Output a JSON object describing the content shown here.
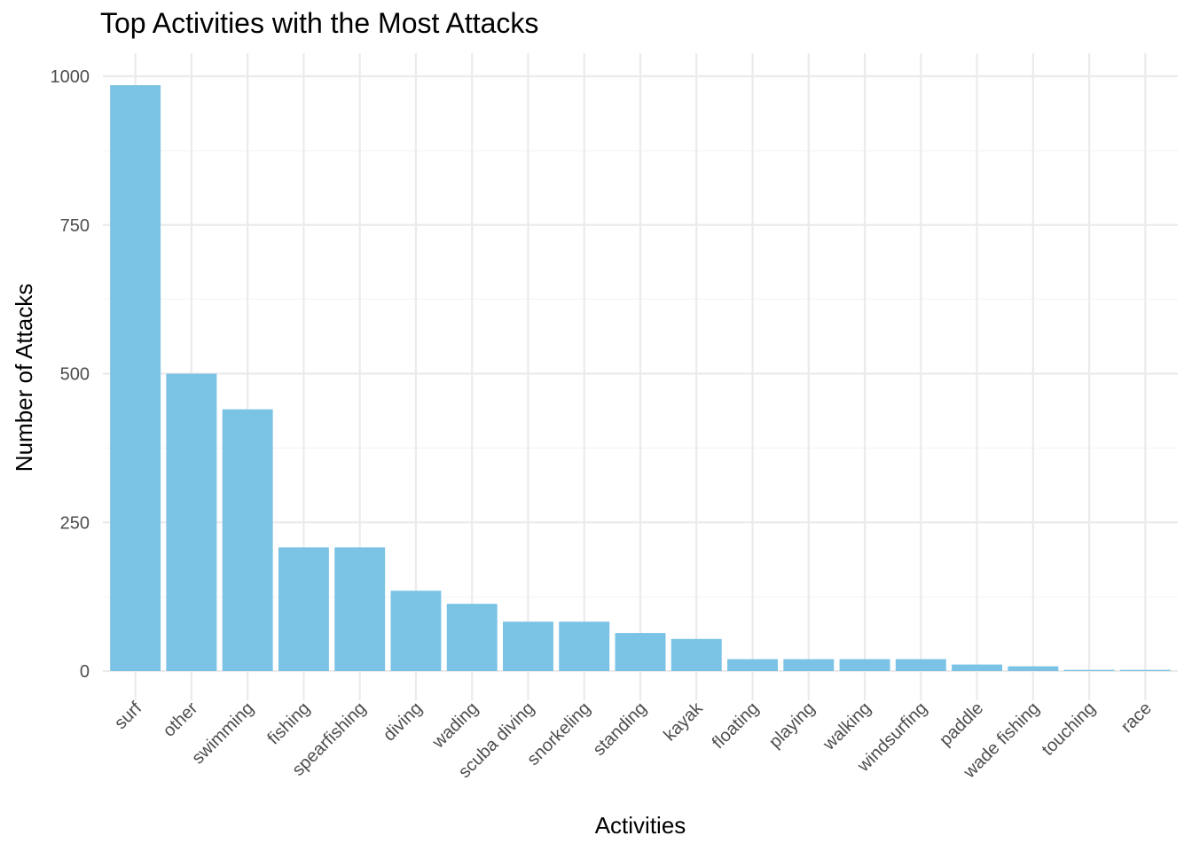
{
  "chart_data": {
    "type": "bar",
    "title": "Top Activities with the Most Attacks",
    "xlabel": "Activities",
    "ylabel": "Number of Attacks",
    "categories": [
      "surf",
      "other",
      "swimming",
      "fishing",
      "spearfishing",
      "diving",
      "wading",
      "scuba diving",
      "snorkeling",
      "standing",
      "kayak",
      "floating",
      "playing",
      "walking",
      "windsurfing",
      "paddle",
      "wade fishing",
      "touching",
      "race"
    ],
    "values": [
      985,
      500,
      440,
      208,
      208,
      135,
      113,
      83,
      83,
      64,
      54,
      20,
      20,
      20,
      20,
      11,
      8,
      2,
      2
    ],
    "ylim": [
      -40,
      1030
    ],
    "yticks": [
      0,
      250,
      500,
      750,
      1000
    ],
    "ytick_labels": [
      "0",
      "250",
      "500",
      "750",
      "1000"
    ],
    "bar_color": "#7BC3E5",
    "grid": true,
    "legend": "none"
  }
}
